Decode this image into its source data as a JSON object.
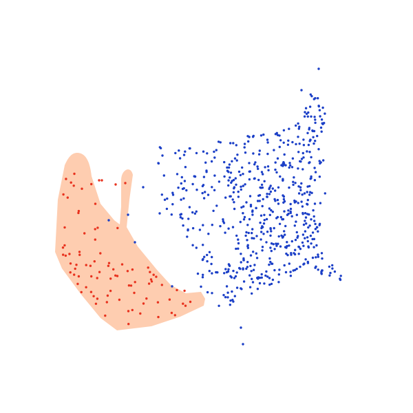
{
  "map": {
    "colors": {
      "background": "#ffffff",
      "highlight_region_fill": "#fecdb0",
      "highlight_points": "#e8321e",
      "other_points": "#1b3fc7"
    },
    "layers": [
      {
        "name": "highlight-region",
        "kind": "area"
      },
      {
        "name": "highlighted-points",
        "kind": "points",
        "count": 86
      },
      {
        "name": "other-points",
        "kind": "points",
        "count": 620
      }
    ]
  }
}
